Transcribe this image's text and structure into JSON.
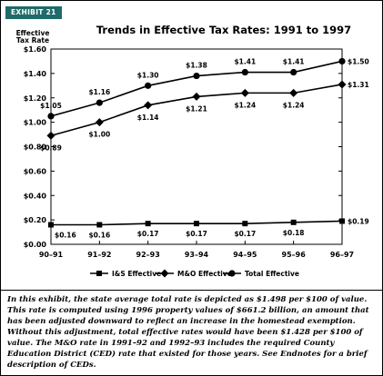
{
  "exhibit_label": "EXHIBIT 21",
  "caption": "In this exhibit, the state average total rate is depicted as $1.498 per $100 of value. This rate is computed using 1996 property values of $661.2 billion, an amount that has been adjusted downward to reflect an increase in the homestead exemption. Without this adjustment, total effective rates would have been $1.428 per $100 of value. The M&O rate in 1991–92 and 1992–93 includes the required County Education District (CED) rate that existed for those years. See Endnotes for a brief description of CEDs.",
  "colors": {
    "exhibit_tag": "#1f6b6b",
    "line": "#000000"
  },
  "chart_data": {
    "type": "line",
    "title": "Trends in Effective Tax Rates: 1991 to 1997",
    "ylabel_line1": "Effective",
    "ylabel_line2": "Tax Rate",
    "categories": [
      "90–91",
      "91–92",
      "92–93",
      "93–94",
      "94–95",
      "95–96",
      "96–97"
    ],
    "ylim": [
      0,
      1.6
    ],
    "yticks": [
      "$0.00",
      "$0.20",
      "$0.40",
      "$0.60",
      "$0.80",
      "$1.00",
      "$1.20",
      "$1.40",
      "$1.60"
    ],
    "grid": false,
    "legend_position": "bottom",
    "series": [
      {
        "name": "I&S Effective",
        "marker": "square",
        "values": [
          0.16,
          0.16,
          0.17,
          0.17,
          0.17,
          0.18,
          0.19
        ],
        "labels": [
          "$0.16",
          "$0.16",
          "$0.17",
          "$0.17",
          "$0.17",
          "$0.18",
          "$0.19"
        ]
      },
      {
        "name": "M&O Effective",
        "marker": "diamond",
        "values": [
          0.89,
          1.0,
          1.14,
          1.21,
          1.24,
          1.24,
          1.31
        ],
        "labels": [
          "$0.89",
          "$1.00",
          "$1.14",
          "$1.21",
          "$1.24",
          "$1.24",
          "$1.31"
        ]
      },
      {
        "name": "Total Effective",
        "marker": "circle",
        "values": [
          1.05,
          1.16,
          1.3,
          1.38,
          1.41,
          1.41,
          1.5
        ],
        "labels": [
          "$1.05",
          "$1.16",
          "$1.30",
          "$1.38",
          "$1.41",
          "$1.41",
          "$1.50"
        ]
      }
    ]
  }
}
